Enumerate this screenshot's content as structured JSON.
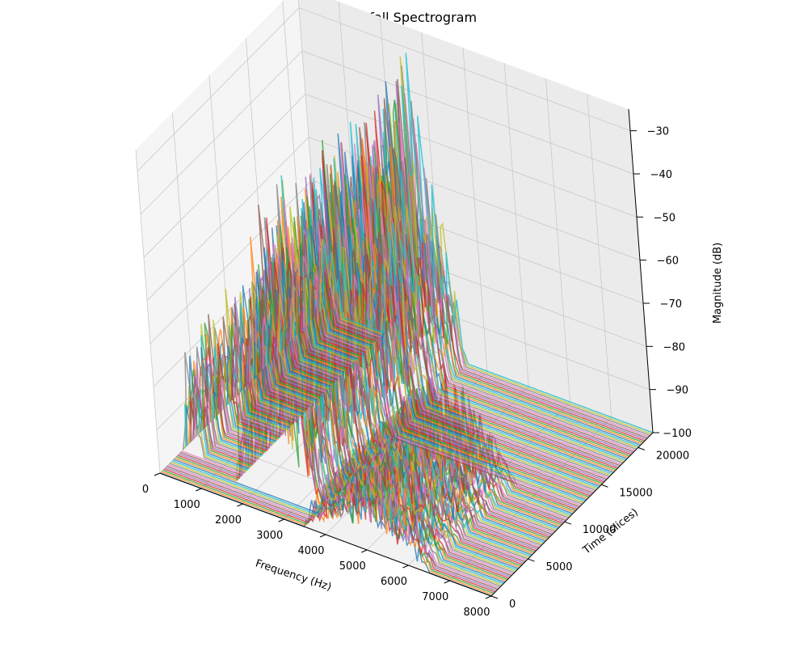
{
  "chart_data": {
    "type": "line",
    "title": "Waterfall Spectrogram",
    "xlabel": "Frequency (Hz)",
    "ylabel": "Time (slices)",
    "zlabel": "Magnitude (dB)",
    "xlim": [
      0,
      8000
    ],
    "ylim": [
      0,
      22000
    ],
    "zlim": [
      -100,
      -25
    ],
    "xticks": [
      0,
      1000,
      2000,
      3000,
      4000,
      5000,
      6000,
      7000,
      8000
    ],
    "yticks": [
      0,
      5000,
      10000,
      15000,
      20000
    ],
    "zticks": [
      -100,
      -90,
      -80,
      -70,
      -60,
      -50,
      -40,
      -30
    ],
    "grid": true,
    "projection": "3d",
    "floor_db": -100,
    "slice_count": 120,
    "peak_regions": [
      {
        "freq_from": 0,
        "freq_to": 500,
        "time_from": 3000,
        "time_to": 22000,
        "peak_db": -70
      },
      {
        "freq_from": 1500,
        "freq_to": 3500,
        "time_from": 2000,
        "time_to": 22000,
        "peak_db": -28
      },
      {
        "freq_from": 3500,
        "freq_to": 6500,
        "time_from": 0,
        "time_to": 12000,
        "peak_db": -75
      }
    ]
  }
}
